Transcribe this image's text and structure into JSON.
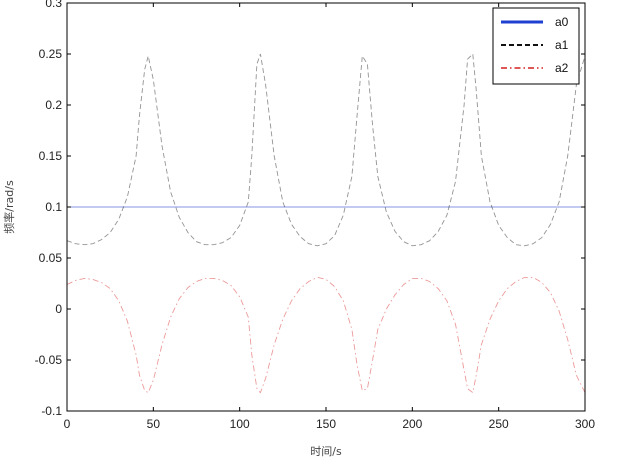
{
  "chart_data": {
    "type": "line",
    "title": "",
    "xlabel": "时间/s",
    "ylabel": "频率/rad/s",
    "xlim": [
      0,
      300
    ],
    "ylim": [
      -0.1,
      0.3
    ],
    "xticks": [
      "0",
      "50",
      "100",
      "150",
      "200",
      "250",
      "300"
    ],
    "yticks": [
      "-0.1",
      "-0.05",
      "0",
      "0.05",
      "0.1",
      "0.15",
      "0.2",
      "0.25",
      "0.3"
    ],
    "grid": false,
    "legend": "top-right",
    "series": [
      {
        "name": "a0",
        "color": "#1f3fd0",
        "style": "solid",
        "x": [
          0,
          300
        ],
        "y": [
          0.1,
          0.1
        ]
      },
      {
        "name": "a1",
        "color": "#111111",
        "style": "dashed",
        "x": [
          0,
          5,
          10,
          15,
          20,
          25,
          30,
          35,
          40,
          42,
          45,
          47,
          50,
          55,
          60,
          65,
          70,
          75,
          80,
          85,
          90,
          95,
          100,
          105,
          107,
          110,
          112,
          115,
          120,
          125,
          130,
          135,
          140,
          145,
          150,
          155,
          160,
          165,
          168,
          171,
          174,
          177,
          180,
          185,
          190,
          195,
          200,
          205,
          210,
          215,
          220,
          225,
          230,
          232,
          235,
          237,
          240,
          245,
          250,
          255,
          260,
          265,
          270,
          275,
          280,
          285,
          290,
          295,
          300
        ],
        "y": [
          0.067,
          0.064,
          0.063,
          0.064,
          0.068,
          0.075,
          0.088,
          0.11,
          0.15,
          0.19,
          0.235,
          0.248,
          0.225,
          0.16,
          0.115,
          0.09,
          0.075,
          0.066,
          0.063,
          0.063,
          0.065,
          0.07,
          0.082,
          0.105,
          0.15,
          0.24,
          0.25,
          0.22,
          0.15,
          0.105,
          0.083,
          0.071,
          0.064,
          0.062,
          0.064,
          0.072,
          0.092,
          0.13,
          0.19,
          0.248,
          0.24,
          0.18,
          0.13,
          0.095,
          0.076,
          0.066,
          0.062,
          0.063,
          0.067,
          0.076,
          0.092,
          0.125,
          0.2,
          0.245,
          0.25,
          0.215,
          0.15,
          0.105,
          0.082,
          0.07,
          0.063,
          0.062,
          0.064,
          0.07,
          0.083,
          0.105,
          0.15,
          0.22,
          0.248
        ]
      },
      {
        "name": "a2",
        "color": "#d42020",
        "style": "dashdot",
        "x": [
          0,
          5,
          10,
          15,
          20,
          25,
          30,
          35,
          40,
          42,
          45,
          47,
          50,
          55,
          60,
          65,
          70,
          75,
          80,
          85,
          90,
          95,
          100,
          105,
          107,
          110,
          112,
          115,
          120,
          125,
          130,
          135,
          140,
          145,
          150,
          155,
          160,
          165,
          168,
          171,
          174,
          177,
          180,
          185,
          190,
          195,
          200,
          205,
          210,
          215,
          220,
          225,
          230,
          232,
          235,
          237,
          240,
          245,
          250,
          255,
          260,
          265,
          270,
          275,
          280,
          285,
          290,
          295,
          300
        ],
        "y": [
          0.024,
          0.028,
          0.03,
          0.029,
          0.026,
          0.02,
          0.008,
          -0.012,
          -0.045,
          -0.065,
          -0.08,
          -0.082,
          -0.07,
          -0.035,
          -0.008,
          0.01,
          0.021,
          0.027,
          0.03,
          0.03,
          0.028,
          0.023,
          0.012,
          -0.008,
          -0.045,
          -0.078,
          -0.082,
          -0.068,
          -0.035,
          -0.01,
          0.008,
          0.02,
          0.027,
          0.031,
          0.029,
          0.022,
          0.008,
          -0.02,
          -0.055,
          -0.08,
          -0.078,
          -0.05,
          -0.02,
          0.0,
          0.014,
          0.024,
          0.03,
          0.03,
          0.027,
          0.02,
          0.008,
          -0.015,
          -0.06,
          -0.078,
          -0.082,
          -0.065,
          -0.035,
          -0.01,
          0.008,
          0.02,
          0.027,
          0.031,
          0.031,
          0.026,
          0.016,
          -0.002,
          -0.03,
          -0.065,
          -0.082
        ]
      }
    ]
  }
}
